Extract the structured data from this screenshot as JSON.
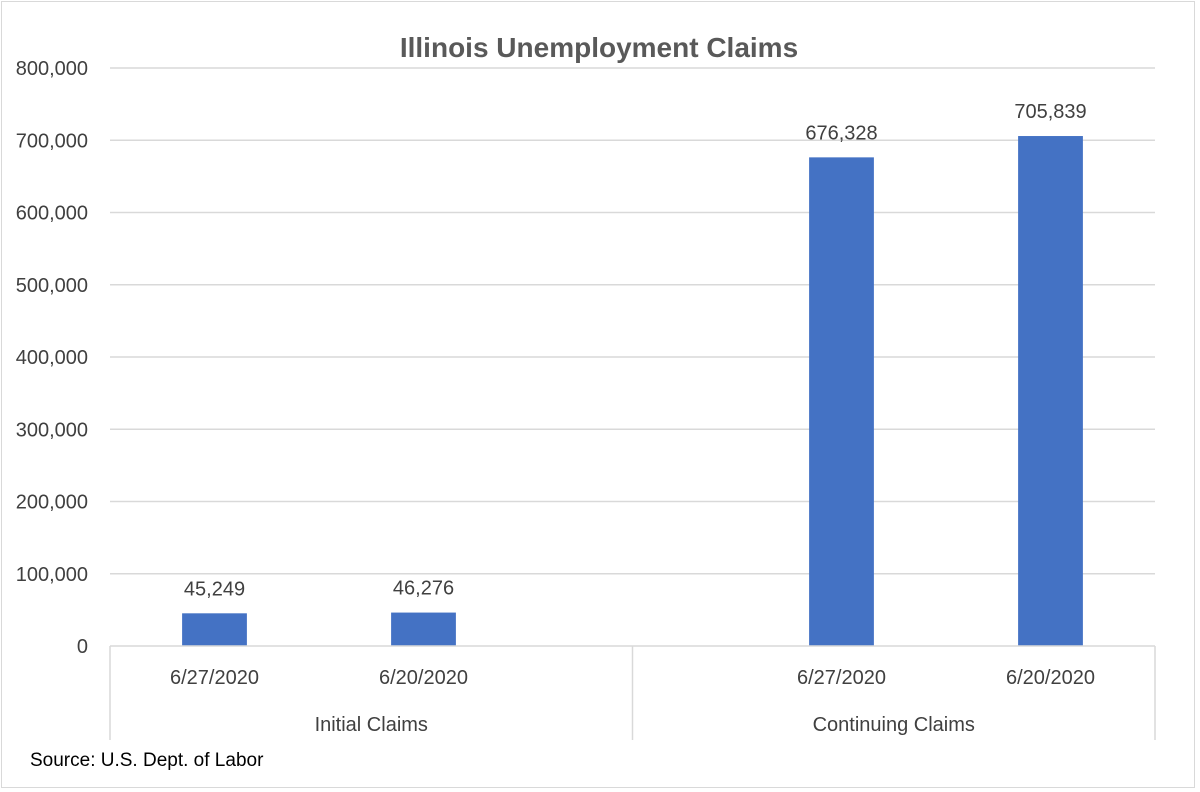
{
  "chart_data": {
    "type": "bar",
    "title": "Illinois Unemployment Claims",
    "groups": [
      {
        "label": "Initial Claims",
        "categories": [
          "6/27/2020",
          "6/20/2020"
        ],
        "values": [
          45249,
          46276
        ],
        "data_labels": [
          "45,249",
          "46,276"
        ]
      },
      {
        "label": "Continuing Claims",
        "categories": [
          "6/27/2020",
          "6/20/2020"
        ],
        "values": [
          676328,
          705839
        ],
        "data_labels": [
          "676,328",
          "705,839"
        ]
      }
    ],
    "ylim": [
      0,
      800000
    ],
    "y_ticks": [
      0,
      100000,
      200000,
      300000,
      400000,
      500000,
      600000,
      700000,
      800000
    ],
    "y_tick_labels": [
      "0",
      "100,000",
      "200,000",
      "300,000",
      "400,000",
      "500,000",
      "600,000",
      "700,000",
      "800,000"
    ],
    "grid": true,
    "bar_color": "#4472C4",
    "xlabel": "",
    "ylabel": ""
  },
  "footer": {
    "source": "Source: U.S. Dept. of Labor"
  }
}
